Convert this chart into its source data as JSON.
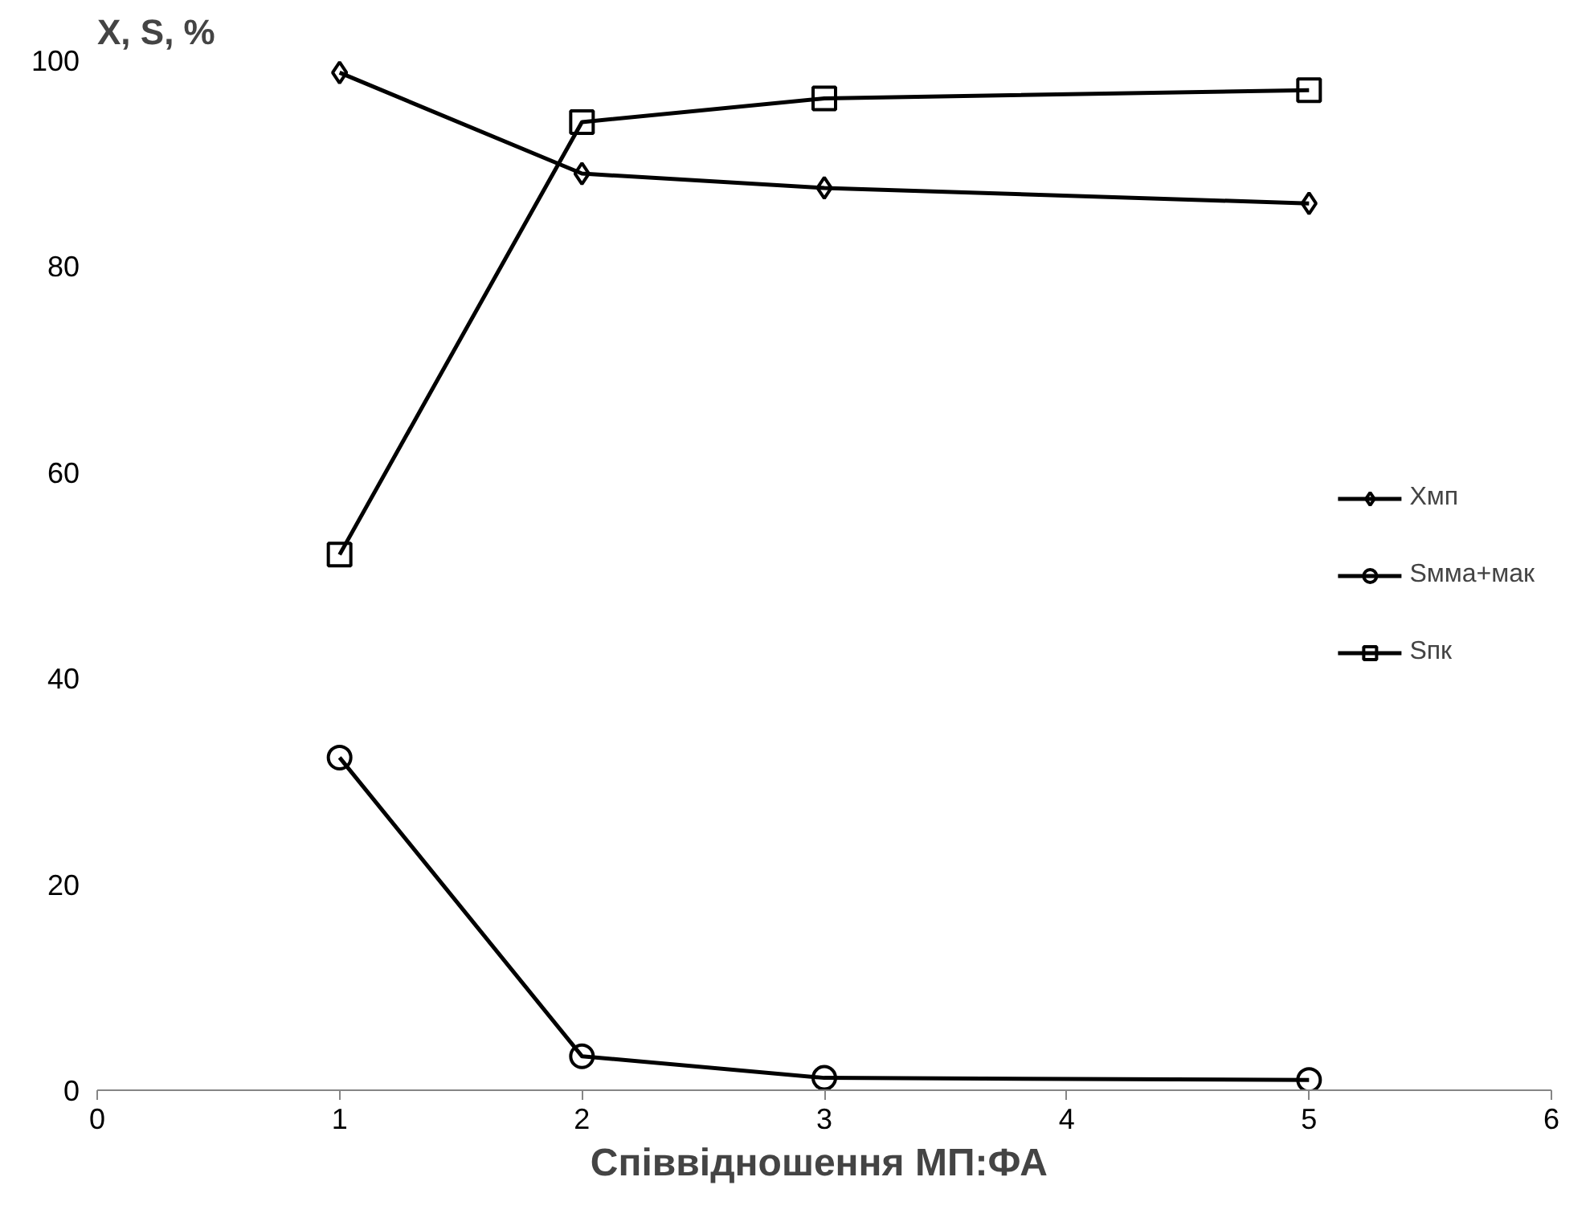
{
  "chart_data": {
    "type": "line",
    "ylabel": "X, S, %",
    "xlabel": "Співвідношення  МП:ФА",
    "xlim": [
      0,
      6
    ],
    "xticks": [
      0,
      1,
      2,
      3,
      4,
      5,
      6
    ],
    "ylim": [
      0,
      100
    ],
    "yticks": [
      0,
      20,
      40,
      60,
      80,
      100
    ],
    "grid": false,
    "legend": "right",
    "line_style": "solid",
    "series": [
      {
        "name": "Xмп",
        "color": "#000000",
        "marker": "diamond",
        "x": [
          1,
          2,
          3,
          5
        ],
        "values": [
          98.8,
          89.0,
          87.6,
          86.1
        ]
      },
      {
        "name": "Sмма+мак",
        "color": "#000000",
        "marker": "circle",
        "x": [
          1,
          2,
          3,
          5
        ],
        "values": [
          32.3,
          3.3,
          1.2,
          1.0
        ]
      },
      {
        "name": "Sпк",
        "color": "#000000",
        "marker": "square",
        "x": [
          1,
          2,
          3,
          5
        ],
        "values": [
          52.0,
          94.0,
          96.3,
          97.1
        ]
      }
    ]
  }
}
